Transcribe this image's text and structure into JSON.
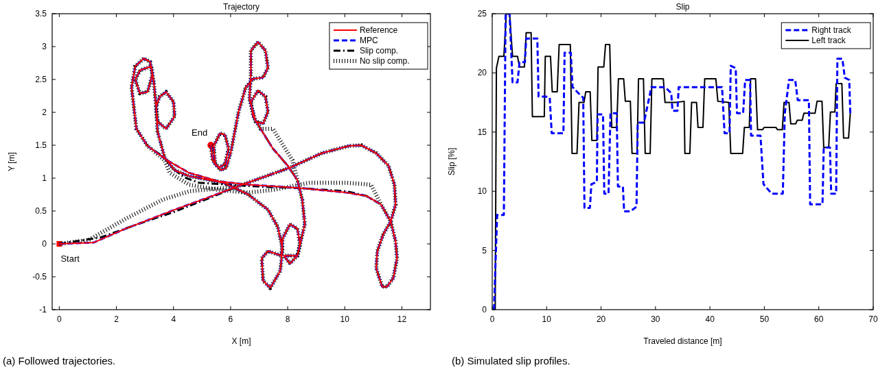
{
  "chart_data": [
    {
      "type": "line",
      "title": "Trajectory",
      "xlabel": "X [m]",
      "ylabel": "Y [m]",
      "xlim": [
        -0.25,
        13
      ],
      "ylim": [
        -1,
        3.5
      ],
      "xticks": [
        0,
        2,
        4,
        6,
        8,
        10,
        12
      ],
      "yticks": [
        -1,
        -0.5,
        0,
        0.5,
        1,
        1.5,
        2,
        2.5,
        3,
        3.5
      ],
      "legend": "top right",
      "grid": false,
      "series": [
        {
          "name": "Reference",
          "color": "#ff0000",
          "line_style": "solid",
          "x": [
            0,
            1.2,
            2.32,
            4.04,
            5.24,
            6.28,
            8.08,
            9.2,
            10.15,
            10.58,
            11.1,
            11.53,
            11.74,
            11.78,
            11.61,
            11.35,
            11.14,
            11.1,
            11.31,
            11.48,
            11.7,
            11.83,
            11.78,
            11.61,
            11.27,
            10.75,
            10.06,
            8.43,
            6.62,
            5.59,
            4.55,
            3.78,
            3.09,
            2.7,
            2.53,
            2.66,
            2.96,
            3.18,
            3.26,
            3.09,
            2.82,
            2.66,
            2.83,
            3.22,
            3.31,
            3.39,
            3.52,
            3.74,
            4.0,
            4.04,
            3.74,
            3.44,
            3.39,
            3.44,
            3.69,
            4.04,
            4.55,
            5.76,
            6.62,
            7.31,
            7.65,
            7.82,
            7.74,
            7.39,
            7.14,
            7.09,
            7.31,
            7.78,
            7.82,
            8.08,
            8.34,
            8.43,
            8.34,
            8.08,
            7.87,
            8.34,
            8.6,
            8.51,
            8.34,
            8.0,
            7.48,
            7.05,
            6.79,
            6.71,
            6.96,
            7.22,
            7.31,
            7.14,
            6.88,
            6.66,
            6.71,
            6.71,
            6.96,
            7.22,
            7.31,
            7.14,
            6.79,
            6.53,
            6.28,
            6.02,
            5.85,
            5.67,
            5.46,
            5.41,
            5.63,
            5.8,
            5.93,
            5.8,
            5.59,
            5.37,
            5.31
          ],
          "values": [
            0,
            0.02,
            0.23,
            0.52,
            0.71,
            0.88,
            1.16,
            1.38,
            1.49,
            1.5,
            1.38,
            1.19,
            0.9,
            0.6,
            0.34,
            0.15,
            -0.11,
            -0.37,
            -0.65,
            -0.65,
            -0.52,
            -0.22,
            0.04,
            0.34,
            0.6,
            0.73,
            0.78,
            0.85,
            0.9,
            0.95,
            1.08,
            1.27,
            1.49,
            1.75,
            2.38,
            2.7,
            2.82,
            2.77,
            2.57,
            2.31,
            2.29,
            2.5,
            2.64,
            2.7,
            2.46,
            2.09,
            2.24,
            2.31,
            2.16,
            1.94,
            1.75,
            1.86,
            2.09,
            1.71,
            1.31,
            1.12,
            1.03,
            0.93,
            0.75,
            0.52,
            0.26,
            -0.07,
            -0.41,
            -0.67,
            -0.56,
            -0.22,
            -0.11,
            -0.18,
            0.08,
            0.3,
            0.23,
            0,
            -0.18,
            -0.3,
            -0.18,
            -0.18,
            0.3,
            0.67,
            0.97,
            1.19,
            1.45,
            1.75,
            1.94,
            2.16,
            2.33,
            2.24,
            2.01,
            1.83,
            1.86,
            2.2,
            2.57,
            2.94,
            3.07,
            2.94,
            2.68,
            2.53,
            2.51,
            2.38,
            2.01,
            1.42,
            1.16,
            1.12,
            1.21,
            1.49,
            1.68,
            1.66,
            1.45,
            1.21,
            1.16,
            1.27,
            1.5
          ]
        },
        {
          "name": "MPC",
          "color": "#0000ff",
          "line_style": "dashed",
          "x": [
            0,
            1.2,
            2.32,
            4.04,
            5.24,
            6.28,
            8.08,
            9.2,
            10.15,
            10.58,
            11.1,
            11.53,
            11.74,
            11.78,
            11.61,
            11.35,
            11.14,
            11.1,
            11.31,
            11.48,
            11.7,
            11.83,
            11.78,
            11.61,
            11.27,
            10.75,
            10.06,
            8.43,
            6.62,
            5.59,
            4.55,
            3.78,
            3.09,
            2.7,
            2.53,
            2.66,
            2.96,
            3.18,
            3.26,
            3.09,
            2.82,
            2.66,
            2.83,
            3.22,
            3.31,
            3.39,
            3.52,
            3.74,
            4.0,
            4.04,
            3.74,
            3.44,
            3.39,
            3.44,
            3.69,
            4.04,
            4.55,
            5.76,
            6.62,
            7.31,
            7.65,
            7.82,
            7.74,
            7.39,
            7.14,
            7.09,
            7.31,
            7.78,
            7.82,
            8.08,
            8.34,
            8.43,
            8.34,
            8.08,
            7.87,
            8.34,
            8.6,
            8.51,
            8.34,
            8.0,
            7.48,
            7.05,
            6.79,
            6.71,
            6.96,
            7.22,
            7.31,
            7.14,
            6.88,
            6.66,
            6.71,
            6.71,
            6.96,
            7.22,
            7.31,
            7.14,
            6.79,
            6.53,
            6.28,
            6.02,
            5.85,
            5.67,
            5.46,
            5.41,
            5.63,
            5.8,
            5.93,
            5.8,
            5.59,
            5.37,
            5.31
          ],
          "values": [
            0,
            0.02,
            0.23,
            0.52,
            0.71,
            0.88,
            1.16,
            1.38,
            1.49,
            1.5,
            1.38,
            1.19,
            0.9,
            0.6,
            0.34,
            0.15,
            -0.11,
            -0.37,
            -0.65,
            -0.65,
            -0.52,
            -0.22,
            0.04,
            0.34,
            0.6,
            0.73,
            0.78,
            0.85,
            0.9,
            0.95,
            1.08,
            1.27,
            1.49,
            1.75,
            2.38,
            2.7,
            2.82,
            2.77,
            2.57,
            2.31,
            2.29,
            2.5,
            2.64,
            2.7,
            2.46,
            2.09,
            2.24,
            2.31,
            2.16,
            1.94,
            1.75,
            1.86,
            2.09,
            1.71,
            1.31,
            1.12,
            1.03,
            0.93,
            0.75,
            0.52,
            0.26,
            -0.07,
            -0.41,
            -0.67,
            -0.56,
            -0.22,
            -0.11,
            -0.18,
            0.08,
            0.3,
            0.23,
            0,
            -0.18,
            -0.3,
            -0.18,
            -0.18,
            0.3,
            0.67,
            0.97,
            1.19,
            1.45,
            1.75,
            1.94,
            2.16,
            2.33,
            2.24,
            2.01,
            1.83,
            1.86,
            2.2,
            2.57,
            2.94,
            3.07,
            2.94,
            2.68,
            2.53,
            2.51,
            2.38,
            2.01,
            1.42,
            1.16,
            1.12,
            1.21,
            1.49,
            1.68,
            1.66,
            1.45,
            1.21,
            1.16,
            1.27,
            1.5
          ]
        },
        {
          "name": "Slip comp.",
          "color": "#000000",
          "line_style": "dashdot",
          "x": [
            0,
            1.46,
            2.75,
            4.04,
            5.33,
            6.28,
            8.08,
            9.2,
            10.15,
            10.58,
            11.1,
            11.53,
            11.74,
            11.78,
            11.61,
            11.35,
            11.14,
            11.1,
            11.31,
            11.48,
            11.7,
            11.83,
            11.78,
            11.61,
            11.27,
            10.75,
            10.06,
            8.34,
            7.05,
            5.93,
            4.9,
            4.38,
            3.95,
            3.69,
            3.09,
            2.7,
            2.53,
            2.66,
            2.96,
            3.18,
            3.26,
            3.09,
            2.82,
            2.66,
            2.83,
            3.22,
            3.31,
            3.39,
            3.52,
            3.74,
            4.0,
            4.04,
            3.74,
            3.44,
            3.39,
            3.44,
            3.69,
            4.04,
            4.55,
            5.76,
            6.62,
            7.31,
            7.65,
            7.82,
            7.74,
            7.39,
            7.14,
            7.09,
            7.31,
            7.78,
            7.82,
            8.08,
            8.34,
            8.43,
            8.34,
            8.08,
            7.87,
            8.34,
            8.6,
            8.51,
            8.34,
            8.0,
            7.48,
            7.05,
            6.79,
            6.71,
            6.96,
            7.22,
            7.31,
            7.14,
            6.88,
            6.66,
            6.71,
            6.71,
            6.96,
            7.22,
            7.31,
            7.14,
            6.79,
            6.53,
            6.28,
            6.02,
            5.85,
            5.67,
            5.46,
            5.41,
            5.63,
            5.8,
            5.93,
            5.8,
            5.59,
            5.37,
            5.31
          ],
          "values": [
            0,
            0.1,
            0.3,
            0.49,
            0.71,
            0.88,
            1.16,
            1.38,
            1.49,
            1.5,
            1.38,
            1.19,
            0.9,
            0.6,
            0.34,
            0.15,
            -0.11,
            -0.37,
            -0.65,
            -0.65,
            -0.52,
            -0.22,
            0.04,
            0.34,
            0.6,
            0.73,
            0.8,
            0.85,
            0.87,
            0.9,
            0.93,
            1.01,
            1.16,
            1.31,
            1.49,
            1.75,
            2.38,
            2.7,
            2.82,
            2.77,
            2.57,
            2.31,
            2.29,
            2.5,
            2.64,
            2.7,
            2.46,
            2.09,
            2.24,
            2.31,
            2.16,
            1.94,
            1.75,
            1.86,
            2.09,
            1.71,
            1.31,
            1.12,
            1.03,
            0.93,
            0.75,
            0.52,
            0.26,
            -0.07,
            -0.41,
            -0.67,
            -0.56,
            -0.22,
            -0.11,
            -0.18,
            0.08,
            0.3,
            0.23,
            0,
            -0.18,
            -0.3,
            -0.18,
            -0.18,
            0.3,
            0.67,
            0.97,
            1.19,
            1.45,
            1.75,
            1.94,
            2.16,
            2.33,
            2.24,
            2.01,
            1.83,
            1.86,
            2.2,
            2.57,
            2.94,
            3.07,
            2.94,
            2.68,
            2.53,
            2.51,
            2.38,
            2.01,
            1.42,
            1.16,
            1.12,
            1.21,
            1.49,
            1.68,
            1.66,
            1.45,
            1.21,
            1.16,
            1.27,
            1.5
          ]
        },
        {
          "name": "No slip comp.",
          "color": "#000000",
          "line_style": "dotted",
          "x": [
            0,
            1.03,
            2.32,
            3.61,
            4.55,
            5.76,
            6.28,
            8.08,
            9.2,
            10.15,
            10.58,
            11.1,
            11.53,
            11.74,
            11.78,
            11.61,
            11.35,
            11.14,
            11.1,
            11.31,
            11.48,
            11.7,
            11.83,
            11.78,
            11.61,
            11.27,
            10.92,
            10.06,
            8.77,
            7.48,
            6.62,
            5.59,
            4.55,
            3.87,
            3.69,
            3.09,
            2.7,
            2.53,
            2.66,
            2.96,
            3.18,
            3.26,
            3.09,
            2.82,
            2.66,
            2.83,
            3.22,
            3.31,
            3.39,
            3.52,
            3.74,
            4.0,
            4.04,
            3.74,
            3.44,
            3.39,
            3.44,
            3.69,
            4.04,
            4.55,
            5.76,
            6.62,
            7.31,
            7.65,
            7.82,
            7.74,
            7.39,
            7.14,
            7.09,
            7.31,
            7.78,
            7.82,
            8.08,
            8.34,
            8.43,
            8.34,
            8.08,
            7.87,
            8.34,
            8.6,
            8.51,
            8.34,
            8.17,
            7.48,
            7.05,
            6.79,
            6.71,
            6.96,
            7.22,
            7.31,
            7.14,
            6.88,
            6.66,
            6.71,
            6.71,
            6.96,
            7.22,
            7.31,
            7.14,
            6.79,
            6.53,
            6.28,
            6.02,
            5.85,
            5.67,
            5.46,
            5.41,
            5.63,
            5.8,
            5.93,
            5.8,
            5.59,
            5.37,
            5.31
          ],
          "values": [
            0,
            0.06,
            0.38,
            0.67,
            0.8,
            0.85,
            0.88,
            1.16,
            1.38,
            1.49,
            1.5,
            1.38,
            1.19,
            0.9,
            0.6,
            0.34,
            0.15,
            -0.11,
            -0.37,
            -0.65,
            -0.65,
            -0.52,
            -0.22,
            0.04,
            0.34,
            0.6,
            0.9,
            0.93,
            0.93,
            0.82,
            0.78,
            0.82,
            0.9,
            1.08,
            1.27,
            1.49,
            1.75,
            2.38,
            2.7,
            2.82,
            2.77,
            2.57,
            2.31,
            2.29,
            2.5,
            2.64,
            2.7,
            2.46,
            2.09,
            2.24,
            2.31,
            2.16,
            1.94,
            1.75,
            1.86,
            2.09,
            1.71,
            1.31,
            1.12,
            1.03,
            0.93,
            0.75,
            0.52,
            0.26,
            -0.07,
            -0.41,
            -0.67,
            -0.56,
            -0.22,
            -0.11,
            -0.18,
            0.08,
            0.3,
            0.23,
            0,
            -0.18,
            -0.3,
            -0.18,
            -0.18,
            0.3,
            0.67,
            0.97,
            1.27,
            1.75,
            1.75,
            1.94,
            2.16,
            2.33,
            2.24,
            2.01,
            1.83,
            1.86,
            2.2,
            2.57,
            2.94,
            3.07,
            2.94,
            2.68,
            2.53,
            2.51,
            2.38,
            2.01,
            1.42,
            1.16,
            1.12,
            1.21,
            1.49,
            1.68,
            1.66,
            1.45,
            1.21,
            1.16,
            1.27,
            1.5
          ]
        },
        {
          "type": "scatter",
          "color": "#ff0000",
          "marker": "square",
          "x": [
            0
          ],
          "values": [
            0
          ]
        },
        {
          "type": "scatter",
          "color": "#ff0000",
          "marker": "circle",
          "x": [
            5.31
          ],
          "values": [
            1.5
          ]
        }
      ],
      "annotations": [
        {
          "text": "Start",
          "x": 0,
          "y": 0
        },
        {
          "text": "End",
          "x": 5.31,
          "y": 1.5
        },
        "(a) Followed trajectories."
      ]
    },
    {
      "type": "line",
      "title": "Slip",
      "xlabel": "Traveled distance [m]",
      "ylabel": "Slip [%]",
      "xlim": [
        0,
        70
      ],
      "ylim": [
        0,
        25
      ],
      "xticks": [
        0,
        10,
        20,
        30,
        40,
        50,
        60,
        70
      ],
      "yticks": [
        0,
        5,
        10,
        15,
        20,
        25
      ],
      "legend": "top right",
      "grid": false,
      "series": [
        {
          "name": "Right track",
          "color": "#0000ff",
          "line_style": "dashed",
          "x": [
            0.32,
            0.91,
            2.14,
            2.46,
            3.19,
            3.74,
            4.65,
            5.01,
            6.01,
            6.24,
            8.29,
            8.52,
            9.89,
            10.57,
            10.93,
            13.08,
            13.3,
            14.44,
            14.76,
            15.81,
            16.72,
            16.95,
            17.95,
            18.22,
            19.23,
            19.36,
            20.36,
            20.59,
            21.37,
            21.73,
            22.87,
            23.1,
            24.01,
            24.24,
            25.38,
            26.51,
            26.74,
            27.88,
            29.25,
            31.75,
            32.89,
            33.12,
            34.03,
            34.26,
            42.23,
            42.69,
            43.6,
            43.83,
            44.74,
            44.97,
            46.1,
            46.47,
            47.38,
            47.56,
            49.29,
            49.84,
            51.34,
            53.39,
            53.76,
            54.53,
            55.67,
            56.13,
            58.18,
            58.41,
            60.68,
            60.91,
            62.05,
            62.28,
            63.19,
            63.42,
            64.33,
            64.78,
            65.6,
            65.79
          ],
          "values": [
            0,
            8.0,
            8.0,
            25,
            25,
            19.2,
            19.2,
            20.9,
            20.9,
            22.9,
            22.9,
            18.0,
            18.0,
            17.9,
            14.9,
            14.9,
            21.7,
            21.7,
            18.8,
            18.3,
            17.9,
            8.6,
            8.6,
            10.6,
            10.8,
            16.5,
            16.5,
            9.8,
            9.8,
            16.6,
            16.6,
            10.4,
            10.4,
            8.3,
            8.3,
            8.7,
            15.8,
            15.8,
            18.8,
            18.8,
            18.3,
            16.8,
            16.8,
            18.8,
            18.8,
            14.9,
            14.9,
            20.6,
            20.4,
            16.6,
            16.6,
            19.4,
            19.4,
            14.7,
            14.7,
            10.6,
            9.8,
            9.8,
            16.6,
            19.4,
            19.4,
            17.7,
            17.7,
            8.9,
            8.9,
            13.7,
            13.7,
            9.8,
            9.8,
            21.2,
            21.2,
            19.6,
            19.4,
            16.6
          ]
        },
        {
          "name": "Left track",
          "color": "#000000",
          "line_style": "solid",
          "x": [
            0.55,
            0.77,
            1.23,
            2.14,
            2.6,
            3.19,
            3.74,
            4.65,
            5.01,
            5.92,
            6.24,
            7.15,
            7.38,
            9.57,
            9.75,
            10.71,
            11.03,
            11.94,
            12.3,
            14.35,
            14.67,
            15.58,
            15.95,
            16.86,
            17.18,
            18.0,
            18.31,
            19.23,
            19.45,
            20.5,
            20.82,
            21.59,
            21.96,
            22.87,
            23.19,
            24.15,
            24.46,
            25.38,
            25.69,
            26.61,
            26.88,
            27.79,
            28.11,
            29.02,
            29.34,
            31.44,
            31.75,
            33.8,
            35.26,
            35.4,
            36.31,
            36.63,
            37.54,
            37.81,
            38.72,
            39.04,
            41.09,
            41.46,
            43.46,
            43.83,
            46.01,
            46.33,
            47.24,
            47.47,
            48.38,
            48.75,
            49.66,
            49.98,
            52.12,
            52.39,
            53.3,
            53.62,
            54.53,
            54.85,
            55.76,
            56.04,
            56.95,
            57.27,
            59.32,
            59.68,
            60.59,
            60.91,
            61.82,
            62.14,
            62.96,
            63.19,
            64.24,
            64.56,
            65.47,
            65.79
          ],
          "values": [
            0,
            20.4,
            21.4,
            21.4,
            25,
            25,
            21.4,
            21.4,
            20.5,
            20.5,
            23.4,
            23.4,
            16.3,
            16.3,
            21.4,
            21.4,
            18.4,
            18.4,
            22.4,
            22.4,
            13.2,
            13.2,
            17.5,
            17.5,
            18.4,
            18.4,
            14.3,
            14.3,
            20.5,
            20.5,
            22.4,
            22.4,
            15.4,
            15.4,
            19.5,
            19.5,
            17.6,
            17.6,
            13.2,
            13.2,
            19.5,
            19.5,
            13.2,
            13.2,
            19.5,
            19.5,
            17.5,
            17.5,
            17.6,
            13.2,
            13.2,
            17.5,
            17.5,
            15.4,
            15.4,
            19.5,
            19.5,
            17.6,
            17.5,
            13.2,
            13.2,
            15.4,
            15.4,
            19.5,
            19.5,
            15.2,
            15.2,
            15.4,
            15.4,
            15.2,
            15.2,
            17.5,
            17.5,
            15.7,
            15.7,
            16.0,
            16.0,
            16.6,
            16.6,
            17.6,
            17.6,
            13.7,
            13.7,
            16.7,
            16.7,
            19.1,
            19.1,
            14.5,
            14.5,
            16.6
          ]
        }
      ],
      "annotations": [
        "(b) Simulated slip profiles."
      ]
    }
  ]
}
